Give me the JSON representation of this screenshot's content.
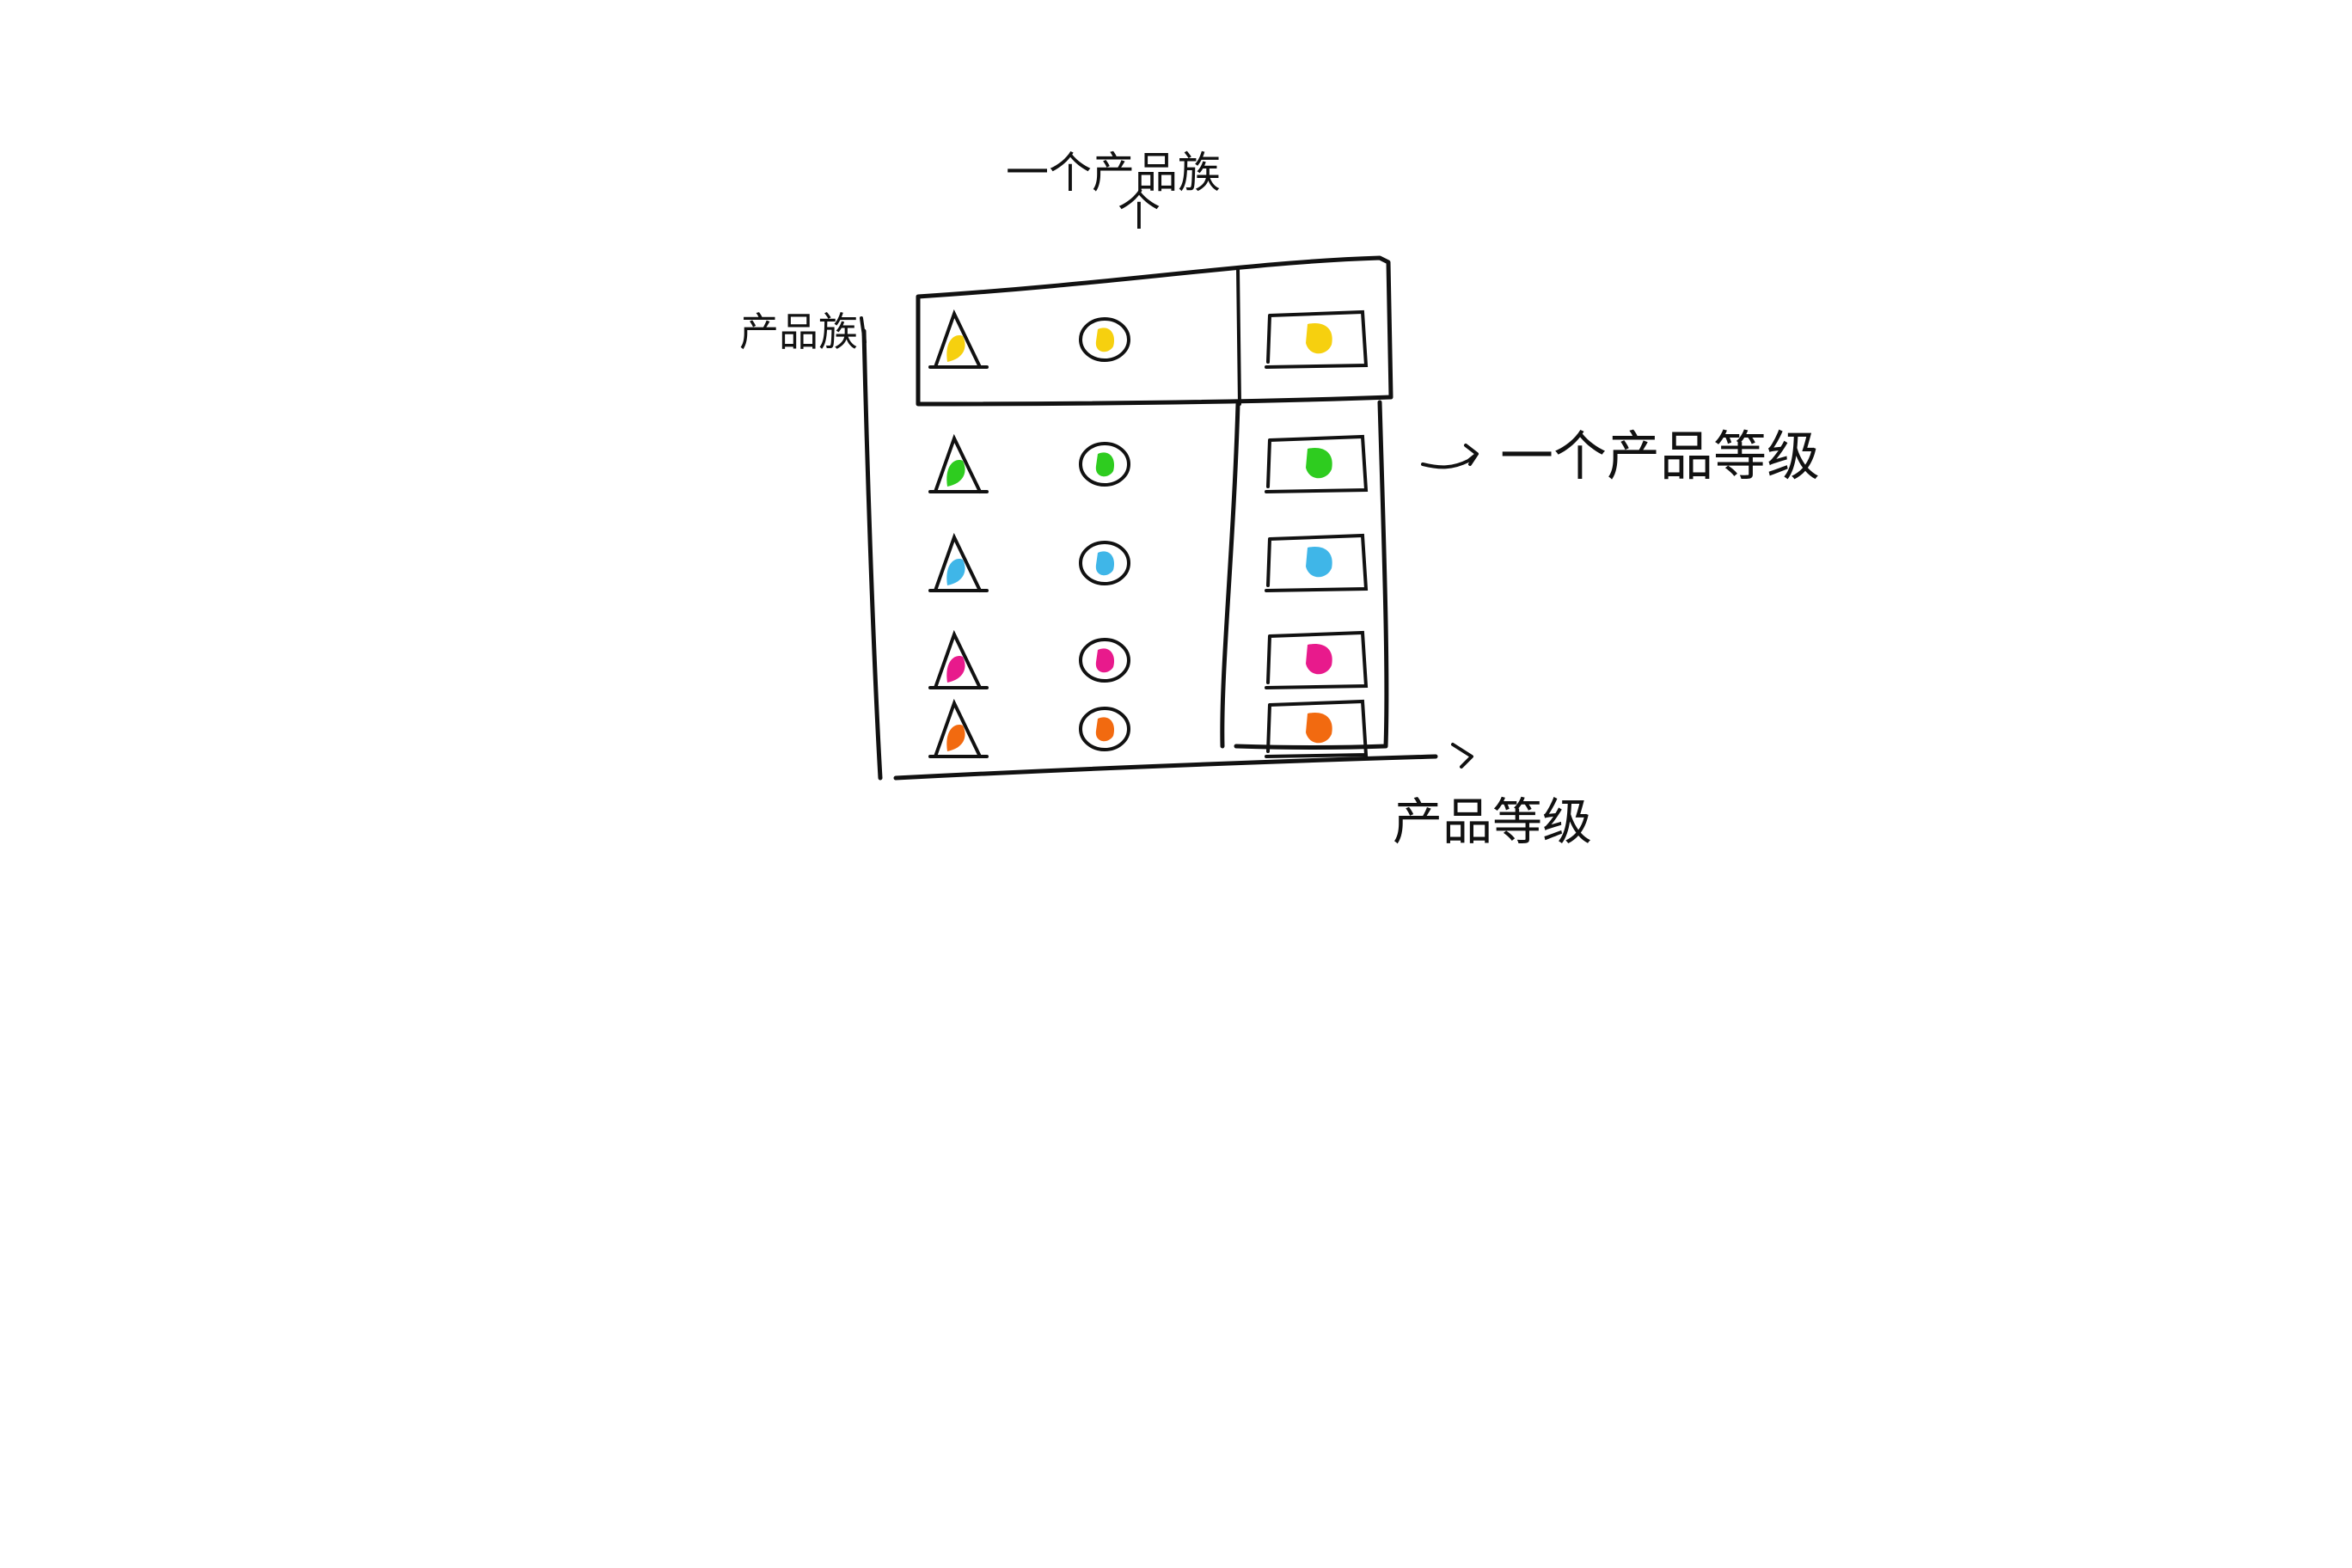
{
  "diagram": {
    "labels": {
      "product_family_row": "一个产品族",
      "product_family_row_pointer": "个",
      "product_family_axis": "产品族",
      "product_level_column": "一个产品等级",
      "product_level_axis": "产品等级"
    },
    "legend_shapes": [
      "triangle",
      "circle",
      "rectangle"
    ],
    "rows": [
      {
        "name": "yellow-family",
        "color": "#F6D00F"
      },
      {
        "name": "green-family",
        "color": "#2ECC1F"
      },
      {
        "name": "blue-family",
        "color": "#3FB6E8"
      },
      {
        "name": "magenta-family",
        "color": "#E81A8C"
      },
      {
        "name": "orange-family",
        "color": "#F26A10"
      }
    ]
  }
}
